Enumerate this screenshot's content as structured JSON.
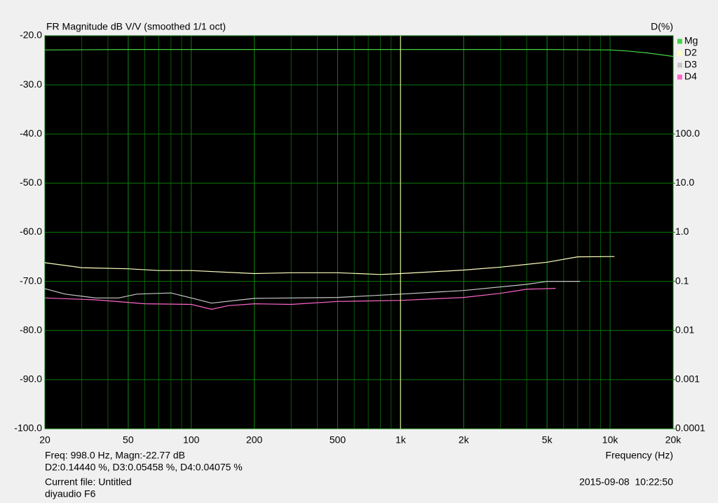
{
  "chart_data": {
    "type": "line",
    "title": "FR Magnitude dB V/V (smoothed 1/1 oct)",
    "y2_title": "D(%)",
    "x_label": "Frequency (Hz)",
    "log_x": true,
    "log_y2": true,
    "grid": true,
    "xlim": [
      20,
      20000
    ],
    "xticks": [
      20,
      50,
      100,
      200,
      500,
      {
        "value": 1000,
        "label": "1k"
      },
      {
        "value": 2000,
        "label": "2k"
      },
      {
        "value": 5000,
        "label": "5k"
      },
      {
        "value": 10000,
        "label": "10k"
      },
      {
        "value": 20000,
        "label": "20k"
      }
    ],
    "ylim": [
      -100,
      -20
    ],
    "yticks": [
      {
        "value": -100,
        "label": "-100.0"
      },
      {
        "value": -90,
        "label": "-90.0"
      },
      {
        "value": -80,
        "label": "-80.0"
      },
      {
        "value": -70,
        "label": "-70.0"
      },
      {
        "value": -60,
        "label": "-60.0"
      },
      {
        "value": -50,
        "label": "-50.0"
      },
      {
        "value": -40,
        "label": "-40.0"
      },
      {
        "value": -30,
        "label": "-30.0"
      },
      {
        "value": -20,
        "label": "-20.0"
      }
    ],
    "y2lim": [
      0.0001,
      10000
    ],
    "y2ticks": [
      0.0001,
      0.001,
      0.01,
      0.1,
      {
        "value": 1,
        "label": "1.0"
      },
      {
        "value": 10,
        "label": "10.0"
      },
      {
        "value": 100,
        "label": "100.0"
      }
    ],
    "cursor": 998,
    "cursor_color": "#ffffb0",
    "series": [
      {
        "name": "Mg",
        "color": "#44d444",
        "axis": "y",
        "x": [
          20,
          50,
          100,
          200,
          500,
          1000,
          2000,
          5000,
          10000,
          12000,
          15000,
          20000
        ],
        "values": [
          -22.9,
          -22.8,
          -22.8,
          -22.8,
          -22.8,
          -22.8,
          -22.8,
          -22.8,
          -22.9,
          -23.1,
          -23.5,
          -24.2
        ]
      },
      {
        "name": "D2",
        "color": "#ffffc0",
        "axis": "y2",
        "x": [
          20,
          30,
          50,
          70,
          100,
          200,
          300,
          500,
          800,
          1000,
          2000,
          3000,
          5000,
          7000,
          10500
        ],
        "values": [
          0.24,
          0.19,
          0.18,
          0.166,
          0.166,
          0.144,
          0.15,
          0.15,
          0.138,
          0.144,
          0.17,
          0.195,
          0.245,
          0.316,
          0.32
        ]
      },
      {
        "name": "D3",
        "color": "#c8c8c8",
        "axis": "y2",
        "x": [
          20,
          25,
          35,
          45,
          55,
          80,
          100,
          125,
          200,
          500,
          1000,
          2000,
          4000,
          5000,
          7200
        ],
        "values": [
          0.071,
          0.055,
          0.046,
          0.046,
          0.055,
          0.058,
          0.046,
          0.036,
          0.045,
          0.047,
          0.055,
          0.065,
          0.087,
          0.1,
          0.1
        ]
      },
      {
        "name": "D4",
        "color": "#ff66cc",
        "axis": "y2",
        "x": [
          20,
          35,
          60,
          100,
          125,
          150,
          200,
          300,
          500,
          1000,
          2000,
          3000,
          4000,
          5500
        ],
        "values": [
          0.046,
          0.042,
          0.035,
          0.034,
          0.027,
          0.032,
          0.035,
          0.034,
          0.039,
          0.041,
          0.047,
          0.057,
          0.069,
          0.072
        ]
      }
    ],
    "readout": [
      "Freq: 998.0 Hz, Magn:-22.77 dB",
      "D2:0.14440 %, D3:0.05458 %, D4:0.04075 %"
    ],
    "file": "Current file: Untitled",
    "note": "diyaudio F6",
    "timestamp": "2015-09-08  10:22:50"
  }
}
